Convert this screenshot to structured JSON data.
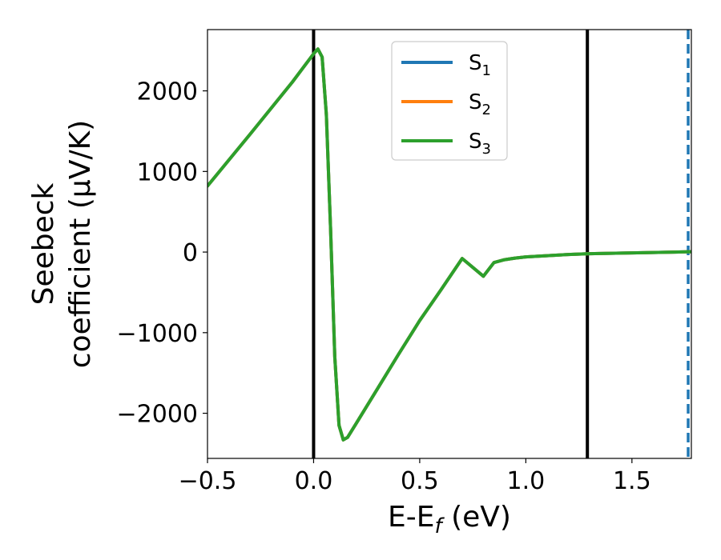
{
  "chart_data": {
    "type": "line",
    "xlabel": "E-E_f (eV)",
    "ylabel_line1": "Seebeck",
    "ylabel_line2": "coefficient  (μV/K)",
    "xlim": [
      -0.5,
      1.78
    ],
    "ylim": [
      -2560,
      2760
    ],
    "xticks": [
      -0.5,
      0.0,
      0.5,
      1.0,
      1.5
    ],
    "xtick_labels": [
      "−0.5",
      "0.0",
      "0.5",
      "1.0",
      "1.5"
    ],
    "yticks": [
      -2000,
      -1000,
      0,
      1000,
      2000
    ],
    "ytick_labels": [
      "−2000",
      "−1000",
      "0",
      "1000",
      "2000"
    ],
    "grid": false,
    "legend_position": "top-center",
    "series": [
      {
        "name": "S₁",
        "base": "S",
        "sub": "1",
        "color": "#1f77b4",
        "x": [
          -0.5,
          -0.3,
          -0.1,
          0.0,
          0.02,
          0.04,
          0.06,
          0.08,
          0.1,
          0.12,
          0.14,
          0.16,
          0.2,
          0.3,
          0.4,
          0.5,
          0.6,
          0.7,
          0.8,
          0.85,
          0.9,
          0.95,
          1.0,
          1.1,
          1.2,
          1.3,
          1.4,
          1.5,
          1.6,
          1.7,
          1.78
        ],
        "y": [
          820,
          1460,
          2110,
          2460,
          2520,
          2420,
          1700,
          300,
          -1300,
          -2150,
          -2330,
          -2300,
          -2130,
          -1700,
          -1270,
          -850,
          -470,
          -80,
          -300,
          -130,
          -95,
          -75,
          -60,
          -45,
          -30,
          -20,
          -15,
          -10,
          -5,
          0,
          5
        ]
      },
      {
        "name": "S₂",
        "base": "S",
        "sub": "2",
        "color": "#ff7f0e",
        "x": [
          -0.5,
          -0.3,
          -0.1,
          0.0,
          0.02,
          0.04,
          0.06,
          0.08,
          0.1,
          0.12,
          0.14,
          0.16,
          0.2,
          0.3,
          0.4,
          0.5,
          0.6,
          0.7,
          0.8,
          0.85,
          0.9,
          0.95,
          1.0,
          1.1,
          1.2,
          1.3,
          1.4,
          1.5,
          1.6,
          1.7,
          1.78
        ],
        "y": [
          820,
          1460,
          2110,
          2460,
          2520,
          2420,
          1700,
          300,
          -1300,
          -2150,
          -2330,
          -2300,
          -2130,
          -1700,
          -1270,
          -850,
          -470,
          -80,
          -300,
          -130,
          -95,
          -75,
          -60,
          -45,
          -30,
          -20,
          -15,
          -10,
          -5,
          0,
          5
        ]
      },
      {
        "name": "S₃",
        "base": "S",
        "sub": "3",
        "color": "#2ca02c",
        "x": [
          -0.5,
          -0.3,
          -0.1,
          0.0,
          0.02,
          0.04,
          0.06,
          0.08,
          0.1,
          0.12,
          0.14,
          0.16,
          0.2,
          0.3,
          0.4,
          0.5,
          0.6,
          0.7,
          0.8,
          0.85,
          0.9,
          0.95,
          1.0,
          1.1,
          1.2,
          1.3,
          1.4,
          1.5,
          1.6,
          1.7,
          1.78
        ],
        "y": [
          820,
          1460,
          2110,
          2460,
          2520,
          2420,
          1700,
          300,
          -1300,
          -2150,
          -2330,
          -2300,
          -2130,
          -1700,
          -1270,
          -850,
          -470,
          -80,
          -300,
          -130,
          -95,
          -75,
          -60,
          -45,
          -30,
          -20,
          -15,
          -10,
          -5,
          0,
          5
        ]
      }
    ],
    "vlines": [
      {
        "x": 0.0,
        "color": "#000000",
        "style": "solid"
      },
      {
        "x": 1.29,
        "color": "#000000",
        "style": "solid"
      },
      {
        "x": 1.765,
        "color": "#1f77b4",
        "style": "dashed"
      }
    ]
  }
}
